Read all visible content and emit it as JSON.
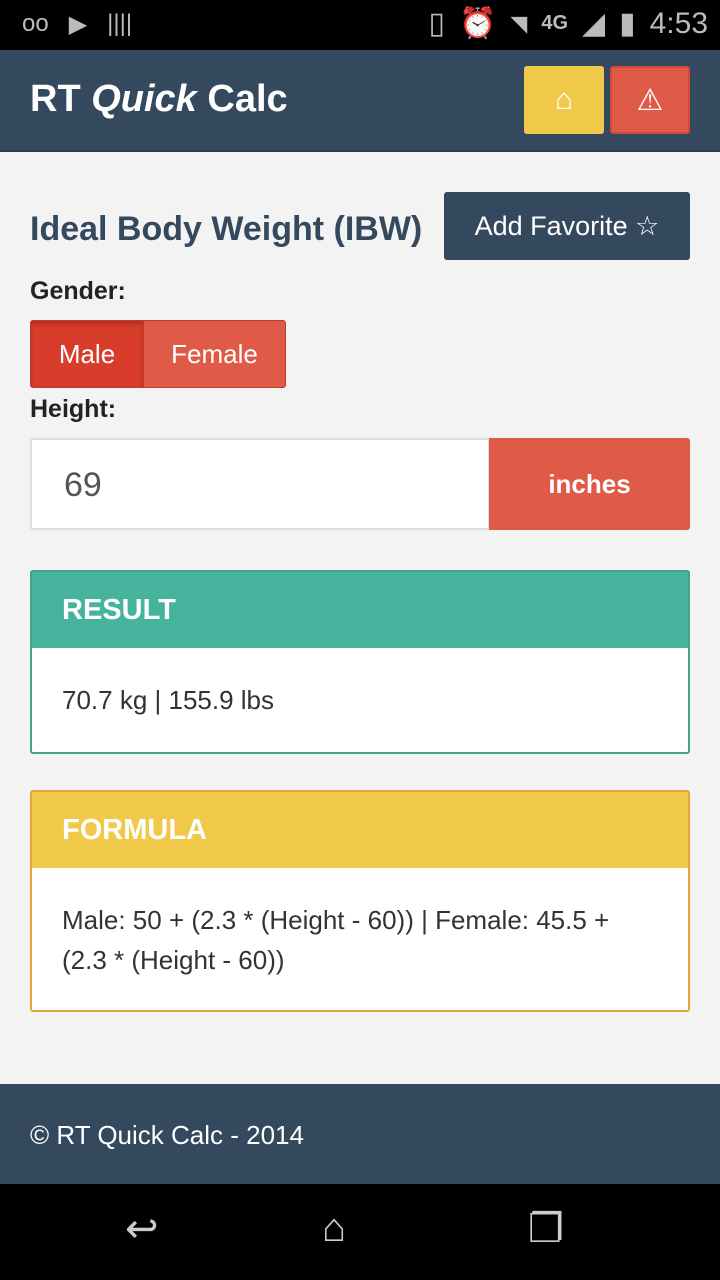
{
  "status": {
    "time": "4:53",
    "network": "4G"
  },
  "header": {
    "brand_plain": "RT ",
    "brand_italic": "Quick",
    "brand_tail": " Calc"
  },
  "page": {
    "title": "Ideal Body Weight (IBW)",
    "favorite_label": "Add Favorite ☆"
  },
  "gender": {
    "label": "Gender:",
    "options": [
      "Male",
      "Female"
    ],
    "selected": "Male"
  },
  "height": {
    "label": "Height:",
    "value": "69",
    "unit": "inches"
  },
  "result": {
    "title": "RESULT",
    "text": "70.7 kg | 155.9 lbs"
  },
  "formula": {
    "title": "FORMULA",
    "text": "Male: 50 + (2.3 * (Height - 60)) | Female: 45.5 + (2.3 * (Height - 60))"
  },
  "footer": {
    "text": "© RT Quick Calc - 2014"
  },
  "colors": {
    "primary": "#34495e",
    "yellow": "#f0c94a",
    "red": "#e05a48",
    "teal": "#46b39d"
  }
}
